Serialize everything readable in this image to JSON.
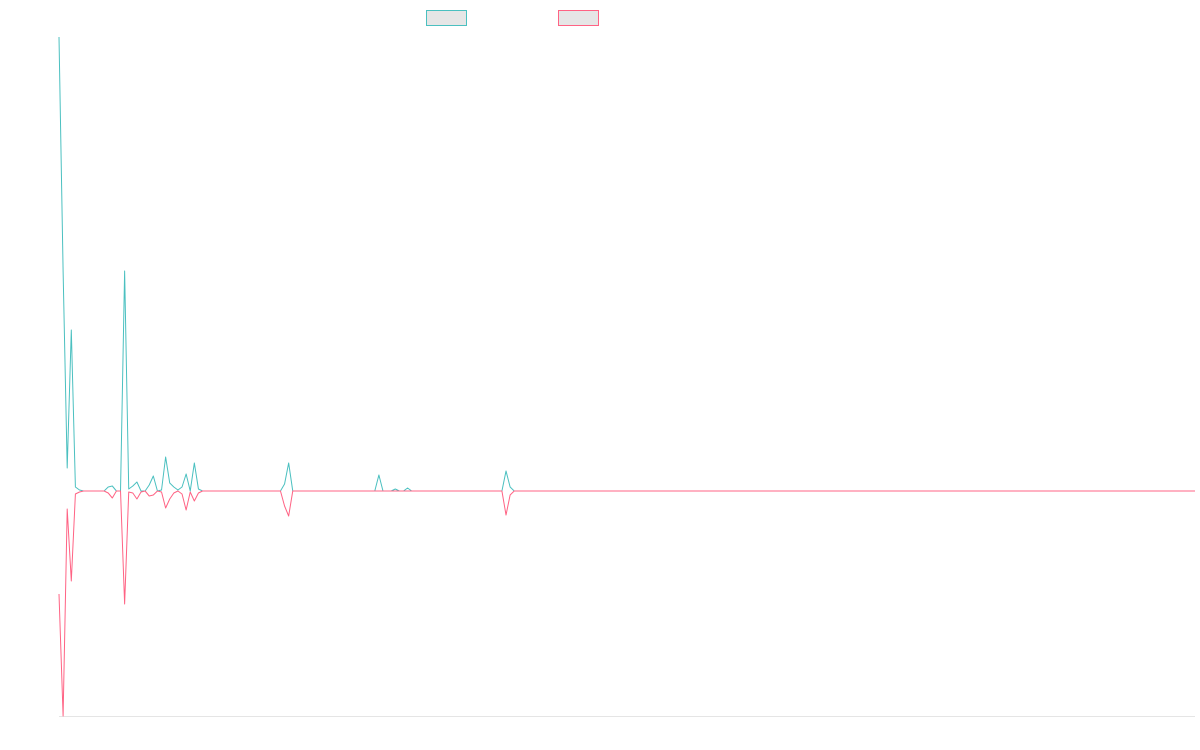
{
  "chart_data": {
    "type": "line",
    "legend": "top",
    "ylim": [
      -225,
      454
    ],
    "series": [
      {
        "color": "#4bc0c0",
        "values": [
          454,
          220,
          23,
          161,
          4,
          1,
          0,
          0,
          0,
          0,
          0,
          0,
          4,
          5,
          0,
          0,
          220,
          2,
          5,
          9,
          0,
          0,
          6,
          15,
          0,
          1,
          34,
          8,
          4,
          1,
          4,
          17,
          0,
          28,
          2,
          0,
          0,
          0,
          0,
          0,
          0,
          0,
          0,
          0,
          0,
          0,
          0,
          0,
          0,
          0,
          0,
          0,
          0,
          0,
          0,
          7,
          28,
          0,
          0,
          0,
          0,
          0,
          0,
          0,
          0,
          0,
          0,
          0,
          0,
          0,
          0,
          0,
          0,
          0,
          0,
          0,
          0,
          0,
          16,
          0,
          0,
          0,
          2,
          0,
          0,
          3,
          0,
          0,
          0,
          0,
          0,
          0,
          0,
          0,
          0,
          0,
          0,
          0,
          0,
          0,
          0,
          0,
          0,
          0,
          0,
          0,
          0,
          0,
          0,
          20,
          4,
          0,
          0,
          0,
          0,
          0,
          0,
          0,
          0,
          0,
          0,
          0,
          0,
          0,
          0,
          0,
          0,
          0,
          0,
          0,
          0,
          0,
          0,
          0,
          0,
          0,
          0,
          0,
          0,
          0,
          0,
          0,
          0,
          0,
          0,
          0,
          0,
          0,
          0,
          0,
          0,
          0,
          0,
          0,
          0,
          0,
          0,
          0,
          0,
          0,
          0,
          0,
          0,
          0,
          0,
          0,
          0,
          0,
          0,
          0,
          0,
          0,
          0,
          0,
          0,
          0,
          0,
          0,
          0,
          0,
          0,
          0,
          0,
          0,
          0,
          0,
          0,
          0,
          0,
          0,
          0,
          0,
          0,
          0,
          0,
          0,
          0,
          0,
          0,
          0,
          0,
          0,
          0,
          0,
          0,
          0,
          0,
          0,
          0,
          0,
          0,
          0,
          0,
          0,
          0,
          0,
          0,
          0,
          0,
          0,
          0,
          0,
          0,
          0,
          0,
          0,
          0,
          0,
          0,
          0,
          0,
          0,
          0,
          0,
          0,
          0,
          0,
          0,
          0,
          0,
          0,
          0,
          0,
          0,
          0,
          0,
          0,
          0,
          0,
          0,
          0,
          0,
          0,
          0,
          0,
          0,
          0,
          0,
          0,
          0,
          0,
          0,
          0,
          0,
          0,
          0,
          0,
          0,
          0,
          0,
          0,
          0,
          0,
          0,
          0,
          0,
          0,
          0
        ]
      },
      {
        "color": "#ff6384",
        "values": [
          -103,
          -225,
          -18,
          -90,
          -3,
          -1,
          0,
          0,
          0,
          0,
          0,
          0,
          -2,
          -7,
          0,
          0,
          -113,
          -1,
          -2,
          -8,
          -1,
          0,
          -5,
          -4,
          0,
          -1,
          -17,
          -8,
          -2,
          0,
          -3,
          -19,
          -1,
          -10,
          -2,
          0,
          0,
          0,
          0,
          0,
          0,
          0,
          0,
          0,
          0,
          0,
          0,
          0,
          0,
          0,
          0,
          0,
          0,
          0,
          0,
          -15,
          -25,
          0,
          0,
          0,
          0,
          0,
          0,
          0,
          0,
          0,
          0,
          0,
          0,
          0,
          0,
          0,
          0,
          0,
          0,
          0,
          0,
          0,
          0,
          0,
          0,
          0,
          0,
          0,
          0,
          0,
          0,
          0,
          0,
          0,
          0,
          0,
          0,
          0,
          0,
          0,
          0,
          0,
          0,
          0,
          0,
          0,
          0,
          0,
          0,
          0,
          0,
          0,
          0,
          -24,
          -4,
          0,
          0,
          0,
          0,
          0,
          0,
          0,
          0,
          0,
          0,
          0,
          0,
          0,
          0,
          0,
          0,
          0,
          0,
          0,
          0,
          0,
          0,
          0,
          0,
          0,
          0,
          0,
          0,
          0,
          0,
          0,
          0,
          0,
          0,
          0,
          0,
          0,
          0,
          0,
          0,
          0,
          0,
          0,
          0,
          0,
          0,
          0,
          0,
          0,
          0,
          0,
          0,
          0,
          0,
          0,
          0,
          0,
          0,
          0,
          0,
          0,
          0,
          0,
          0,
          0,
          0,
          0,
          0,
          0,
          0,
          0,
          0,
          0,
          0,
          0,
          0,
          0,
          0,
          0,
          0,
          0,
          0,
          0,
          0,
          0,
          0,
          0,
          0,
          0,
          0,
          0,
          0,
          0,
          0,
          0,
          0,
          0,
          0,
          0,
          0,
          0,
          0,
          0,
          0,
          0,
          0,
          0,
          0,
          0,
          0,
          0,
          0,
          0,
          0,
          0,
          0,
          0,
          0,
          0,
          0,
          0,
          0,
          0,
          0,
          0,
          0,
          0,
          0,
          0,
          0,
          0,
          0,
          0,
          0,
          0,
          0,
          0,
          0,
          0,
          0,
          0,
          0,
          0,
          0,
          0,
          0,
          0,
          0,
          0,
          0,
          0,
          0,
          0,
          0,
          0,
          0,
          0,
          0,
          0,
          0,
          0,
          0,
          0,
          0,
          0,
          0,
          0
        ]
      }
    ]
  }
}
